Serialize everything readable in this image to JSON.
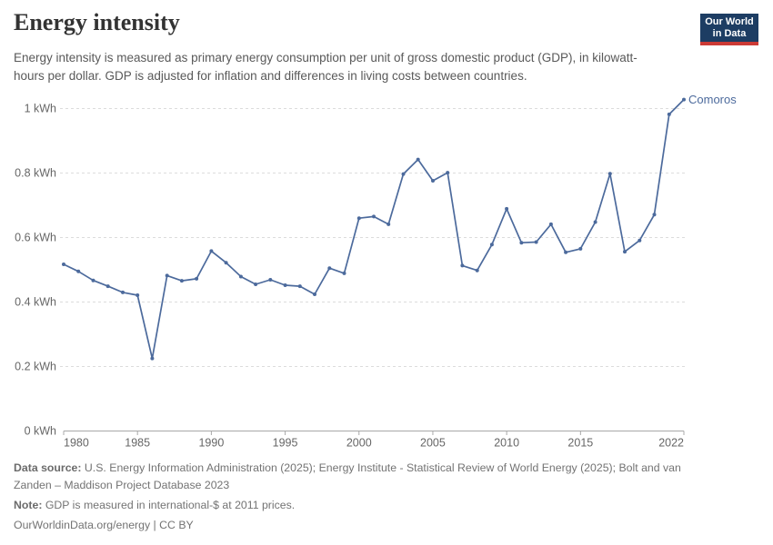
{
  "header": {
    "title": "Energy intensity",
    "subtitle": "Energy intensity is measured as primary energy consumption per unit of gross domestic product (GDP), in kilowatt-hours per dollar. GDP is adjusted for inflation and differences in living costs between countries.",
    "logo": {
      "line1": "Our World",
      "line2": "in Data",
      "bg_color": "#1d3d63",
      "bar_color": "#cc3a35"
    }
  },
  "chart_data": {
    "type": "line",
    "title": "Energy intensity",
    "unit": "kWh",
    "xlim": [
      1980,
      2022
    ],
    "ylim": [
      0,
      1.05
    ],
    "grid": "horizontal-dashed",
    "end_label": "Comoros",
    "x_ticks": [
      1980,
      1985,
      1990,
      1995,
      2000,
      2005,
      2010,
      2015,
      2022
    ],
    "y_ticks": [
      {
        "value": 0,
        "label": "0 kWh"
      },
      {
        "value": 0.2,
        "label": "0.2 kWh"
      },
      {
        "value": 0.4,
        "label": "0.4 kWh"
      },
      {
        "value": 0.6,
        "label": "0.6 kWh"
      },
      {
        "value": 0.8,
        "label": "0.8 kWh"
      },
      {
        "value": 1,
        "label": "1 kWh"
      }
    ],
    "series": [
      {
        "name": "Comoros",
        "color": "#4c6a9c",
        "x": [
          1980,
          1981,
          1982,
          1983,
          1984,
          1985,
          1986,
          1987,
          1988,
          1989,
          1990,
          1991,
          1992,
          1993,
          1994,
          1995,
          1996,
          1997,
          1998,
          1999,
          2000,
          2001,
          2002,
          2003,
          2004,
          2005,
          2006,
          2007,
          2008,
          2009,
          2010,
          2011,
          2012,
          2013,
          2014,
          2015,
          2016,
          2017,
          2018,
          2019,
          2020,
          2021,
          2022
        ],
        "values": [
          0.517,
          0.495,
          0.467,
          0.449,
          0.43,
          0.421,
          0.225,
          0.482,
          0.466,
          0.472,
          0.558,
          0.522,
          0.479,
          0.455,
          0.469,
          0.452,
          0.449,
          0.424,
          0.505,
          0.489,
          0.66,
          0.665,
          0.641,
          0.797,
          0.842,
          0.776,
          0.801,
          0.513,
          0.498,
          0.578,
          0.689,
          0.584,
          0.586,
          0.641,
          0.554,
          0.565,
          0.648,
          0.798,
          0.556,
          0.591,
          0.671,
          0.982,
          1.028
        ]
      }
    ]
  },
  "footer": {
    "data_source_label": "Data source:",
    "data_source": "U.S. Energy Information Administration (2025); Energy Institute - Statistical Review of World Energy (2025); Bolt and van Zanden – Maddison Project Database 2023",
    "note_label": "Note:",
    "note": "GDP is measured in international-$ at 2011 prices.",
    "link": "OurWorldinData.org/energy | CC BY"
  },
  "colors": {
    "line": "#4c6a9c",
    "gridline": "#dcdcdc",
    "axis": "#a8a8a8",
    "tick_label": "#666666",
    "title": "#333333",
    "subtitle": "#595959",
    "footer": "#737373"
  }
}
